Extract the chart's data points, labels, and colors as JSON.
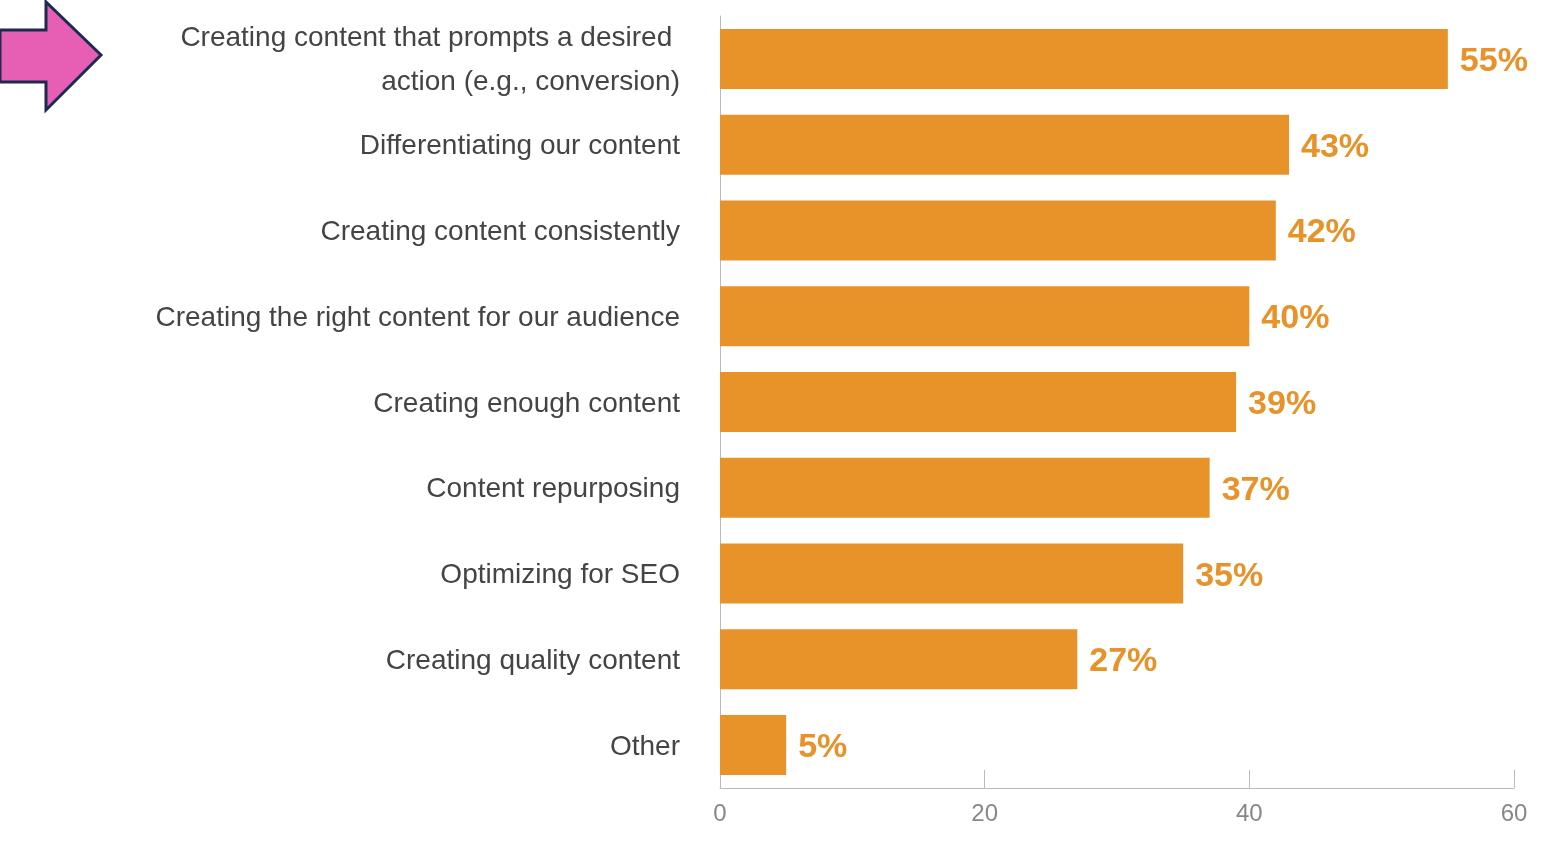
{
  "chart_data": {
    "type": "bar",
    "orientation": "horizontal",
    "categories": [
      "Creating content that prompts a desired action (e.g., conversion)",
      "Differentiating our content",
      "Creating content consistently",
      "Creating the right content for our audience",
      "Creating enough content",
      "Content repurposing",
      "Optimizing for SEO",
      "Creating quality content",
      "Other"
    ],
    "values": [
      55,
      43,
      42,
      40,
      39,
      37,
      35,
      27,
      5
    ],
    "value_labels": [
      "55%",
      "43%",
      "42%",
      "40%",
      "39%",
      "37%",
      "35%",
      "27%",
      "5%"
    ],
    "color": "#e8922a",
    "xlim": [
      0,
      60
    ],
    "xticks": [
      0,
      20,
      40,
      60
    ],
    "grid": false
  }
}
